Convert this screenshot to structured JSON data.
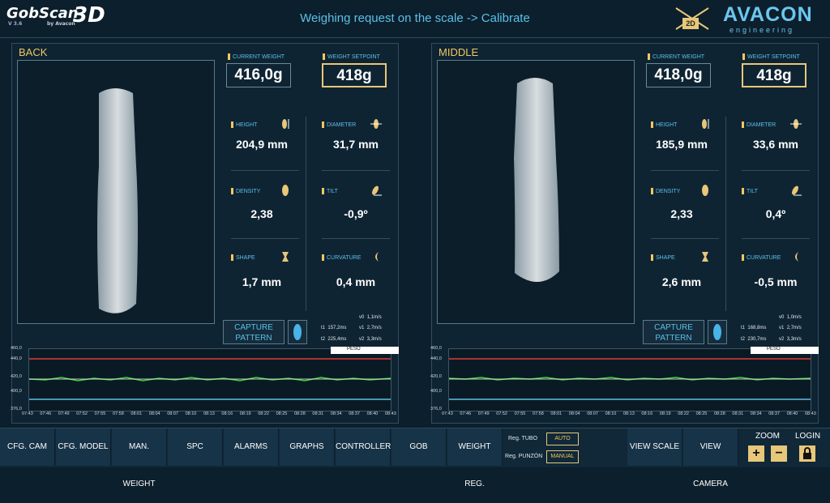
{
  "app": {
    "logo": "GobScan",
    "logo_3d": "3D",
    "version": "V 3.6",
    "by": "by Avacon",
    "title": "Weighing request on the scale -> Calibrate",
    "brand": "AVACON",
    "brand_sub": "engineering",
    "mode_2d": "2D"
  },
  "left": {
    "name": "BACK",
    "current_weight_label": "CURRENT WEIGHT",
    "current_weight": "416,0g",
    "setpoint_label": "WEIGHT SETPOINT",
    "setpoint": "418g",
    "height_label": "HEIGHT",
    "height": "204,9 mm",
    "diameter_label": "DIAMETER",
    "diameter": "31,7 mm",
    "density_label": "DENSITY",
    "density": "2,38",
    "tilt_label": "TILT",
    "tilt": "-0,9º",
    "shape_label": "SHAPE",
    "shape": "1,7 mm",
    "curvature_label": "CURVATURE",
    "curvature": "0,4 mm",
    "capture_label": "CAPTURE PATTERN",
    "t1": "t1",
    "t1v": "157,2ms",
    "t2": "t2",
    "t2v": "225,4ms",
    "v0": "v0",
    "v0v": "1,1m/s",
    "v1": "v1",
    "v1v": "2,7m/s",
    "v2": "v2",
    "v2v": "3,3m/s",
    "chart_selector": "PESO"
  },
  "right": {
    "name": "MIDDLE",
    "current_weight_label": "CURRENT WEIGHT",
    "current_weight": "418,0g",
    "setpoint_label": "WEIGHT SETPOINT",
    "setpoint": "418g",
    "height_label": "HEIGHT",
    "height": "185,9 mm",
    "diameter_label": "DIAMETER",
    "diameter": "33,6 mm",
    "density_label": "DENSITY",
    "density": "2,33",
    "tilt_label": "TILT",
    "tilt": "0,4º",
    "shape_label": "SHAPE",
    "shape": "2,6 mm",
    "curvature_label": "CURVATURE",
    "curvature": "-0,5 mm",
    "capture_label": "CAPTURE PATTERN",
    "t1": "t1",
    "t1v": "168,8ms",
    "t2": "t2",
    "t2v": "230,7ms",
    "v0": "v0",
    "v0v": "1,0m/s",
    "v1": "v1",
    "v1v": "2,7m/s",
    "v2": "v2",
    "v2v": "3,3m/s",
    "chart_selector": "PESO"
  },
  "chart": {
    "y_ticks": [
      "460,0",
      "440,0",
      "420,0",
      "400,0",
      "376,0"
    ],
    "x_ticks": [
      "07:43",
      "07:46",
      "07:49",
      "07:52",
      "07:55",
      "07:58",
      "08:01",
      "08:04",
      "08:07",
      "08:10",
      "08:13",
      "08:16",
      "08:19",
      "08:22",
      "08:25",
      "08:28",
      "08:31",
      "08:34",
      "08:37",
      "08:40",
      "08:43"
    ]
  },
  "toolbar": {
    "cfg_cam": "CFG. CAM",
    "cfg_model": "CFG. MODEL",
    "man_weight": "MAN. WEIGHT",
    "spc": "SPC",
    "alarms": "ALARMS",
    "graphs": "GRAPHS",
    "controller": "CONTROLLER",
    "gob": "GOB",
    "weight_reg": "WEIGHT REG.",
    "reg_tubo": "Reg. TUBO",
    "reg_tubo_val": "AUTO",
    "reg_punzon": "Reg. PUNZÓN",
    "reg_punzon_val": "MANUAL",
    "view_scale": "VIEW SCALE",
    "view_camera": "VIEW CAMERA",
    "zoom": "ZOOM",
    "login": "LOGIN",
    "plus": "+",
    "minus": "−"
  },
  "colors": {
    "accent": "#5bc0e8",
    "gold": "#f0c860",
    "limit": "#e03b3b",
    "trace": "#3bd13b"
  }
}
